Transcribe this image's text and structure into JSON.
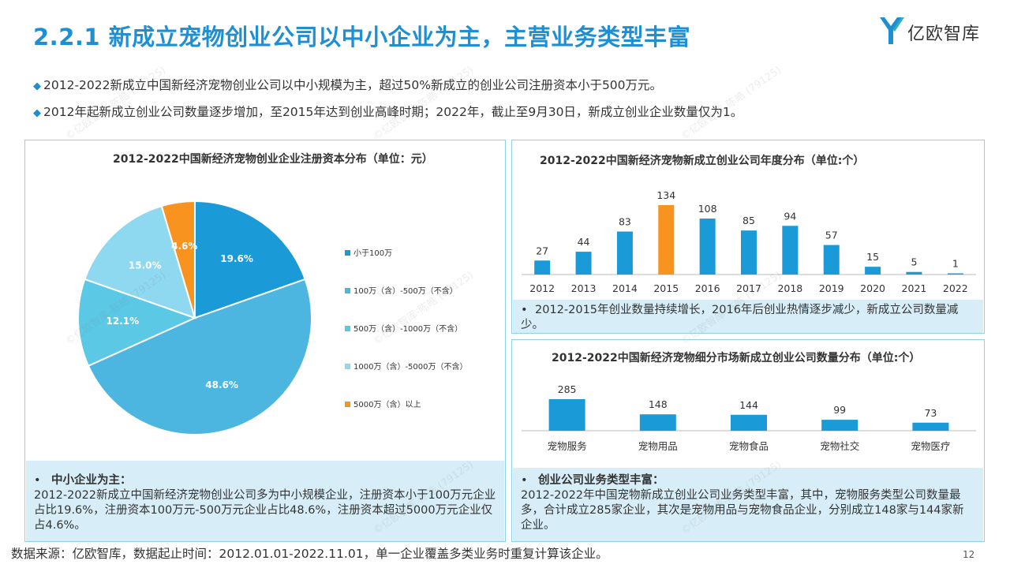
{
  "header": {
    "title": "2.2.1 新成立宠物创业公司以中小企业为主，主营业务类型丰富",
    "logo_text": "亿欧智库"
  },
  "bullets": [
    "2012-2022新成立中国新经济宠物创业公司以中小规模为主，超过50%新成立的创业公司注册资本小于500万元。",
    "2012年起新成立创业公司数量逐步增加，至2015年达到创业高峰时期；2022年，截止至9月30日，新成立创业企业数量仅为1。"
  ],
  "watermark": "©亿欧智库-陈皓 (79125)",
  "chart_data": [
    {
      "type": "pie",
      "title": "2012-2022中国新经济宠物创业企业注册资本分布（单位：元）",
      "labels": [
        "小于100万",
        "100万（含）-500万（不含）",
        "500万（含）-1000万（不含）",
        "1000万（含）-5000万（不含）",
        "5000万（含）以上"
      ],
      "values": [
        19.6,
        48.6,
        12.1,
        15.0,
        4.6
      ],
      "value_labels": [
        "19.6%",
        "48.6%",
        "12.1%",
        "15.0%",
        "4.6%"
      ],
      "colors": [
        "#1a9ad6",
        "#4db6e0",
        "#5bc8e6",
        "#8ed8f0",
        "#f7931e"
      ],
      "legend": "right"
    },
    {
      "type": "bar",
      "title": "2012-2022中国新经济宠物新成立创业公司年度分布（单位:个）",
      "categories": [
        "2012",
        "2013",
        "2014",
        "2015",
        "2016",
        "2017",
        "2018",
        "2019",
        "2020",
        "2021",
        "2022"
      ],
      "values": [
        27,
        44,
        83,
        134,
        108,
        85,
        94,
        57,
        15,
        5,
        1
      ],
      "colors": {
        "default": "#1a9ad6",
        "highlight": "#f7931e"
      },
      "highlight_index": 3,
      "ylim": [
        0,
        134
      ]
    },
    {
      "type": "bar",
      "title": "2012-2022中国新经济宠物细分市场新成立创业公司数量分布（单位:个）",
      "categories": [
        "宠物服务",
        "宠物用品",
        "宠物食品",
        "宠物社交",
        "宠物医疗"
      ],
      "values": [
        285,
        148,
        144,
        99,
        73
      ],
      "colors": {
        "default": "#1a9ad6"
      },
      "ylim": [
        0,
        285
      ]
    }
  ],
  "notes": {
    "left": {
      "bullet": "•",
      "heading": "中小企业为主：",
      "text": "2012-2022新成立中国新经济宠物创业公司多为中小规模企业，注册资本小于100万元企业占比19.6%，注册资本100万元-500万元企业占比48.6%，注册资本超过5000万元企业仅占4.6%。"
    },
    "top": {
      "bullet": "•",
      "text": "2012-2015年创业数量持续增长，2016年后创业热情逐步减少，新成立公司数量减少。"
    },
    "bottom": {
      "bullet": "•",
      "heading": "创业公司业务类型丰富：",
      "text": "2012-2022年中国宠物新成立创业公司业务类型丰富，其中，宠物服务类型公司数量最多，合计成立285家企业，其次是宠物用品与宠物食品企业，分别成立148家与144家新企业。"
    }
  },
  "footer": {
    "source": "数据来源：亿欧智库，数据起止时间：2012.01.01-2022.11.01，单一企业覆盖多类业务时重复计算该企业。",
    "page_number": "12"
  }
}
